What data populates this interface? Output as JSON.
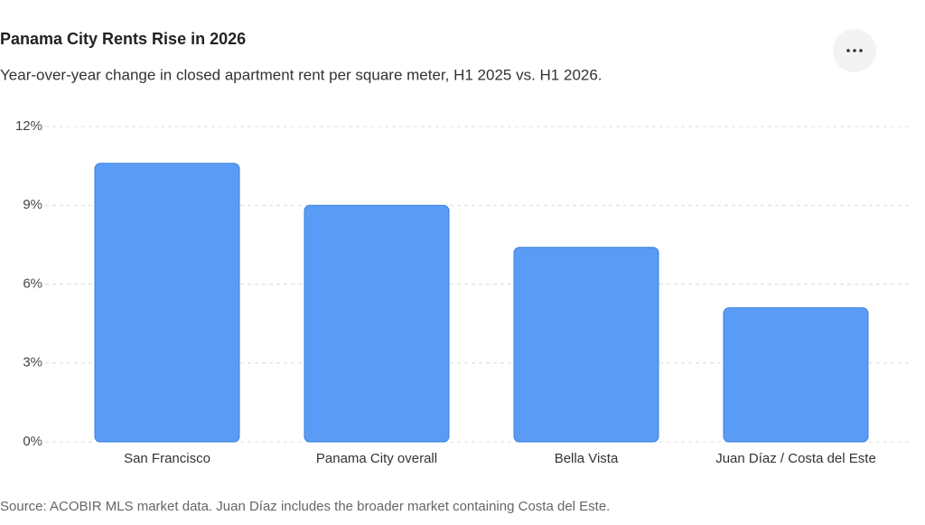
{
  "chart_data": {
    "type": "bar",
    "title": "Panama City Rents Rise in 2026",
    "subtitle": "Year-over-year change in closed apartment rent per square meter, H1 2025 vs. H1 2026.",
    "categories": [
      "San Francisco",
      "Panama City overall",
      "Bella Vista",
      "Juan Díaz / Costa del Este"
    ],
    "values": [
      10.6,
      9.0,
      7.4,
      5.1
    ],
    "color": "#5a9cf5",
    "ylim": [
      0,
      12
    ],
    "yticks": [
      {
        "value": 0,
        "label": "0%"
      },
      {
        "value": 3,
        "label": "3%"
      },
      {
        "value": 6,
        "label": "6%"
      },
      {
        "value": 9,
        "label": "9%"
      },
      {
        "value": 12,
        "label": "12%"
      }
    ],
    "grid": true,
    "source": "Source: ACOBIR MLS market data. Juan Díaz includes the broader market containing Costa del Este."
  }
}
